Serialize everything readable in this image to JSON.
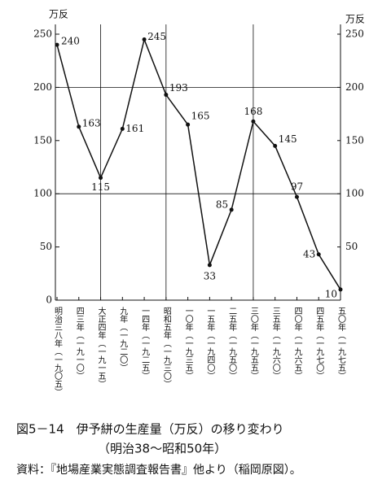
{
  "chart_data": {
    "type": "line",
    "y_label": "万反",
    "y2_label": "万反",
    "categories": [
      "明治三八年（一九〇五）",
      "四三年（一九一〇）",
      "大正四年（一九一五）",
      "九年（一九二〇）",
      "一四年（一九二五）",
      "昭和五年（一九三〇）",
      "一〇年（一九三五）",
      "一五年（一九四〇）",
      "二五年（一九五〇）",
      "三〇年（一九五五）",
      "三五年（一九六〇）",
      "四〇年（一九六五）",
      "四五年（一九七〇）",
      "五〇年（一九七五）"
    ],
    "values": [
      240,
      163,
      115,
      161,
      245,
      193,
      165,
      33,
      85,
      168,
      145,
      97,
      43,
      10
    ],
    "color": "#111",
    "ylim": [
      0,
      250
    ],
    "yticks": [
      0,
      50,
      100,
      150,
      200,
      250
    ],
    "y2lim": [
      0,
      250
    ],
    "y2ticks": [
      50,
      100,
      150,
      200,
      250
    ],
    "caption": {
      "title": "図5－14　伊予絣の生産量（万反）の移り変わり",
      "subtitle": "（明治38～昭和50年）",
      "source": "資料：『地場産業実態調査報告書』他より（稲岡原図）。"
    }
  }
}
